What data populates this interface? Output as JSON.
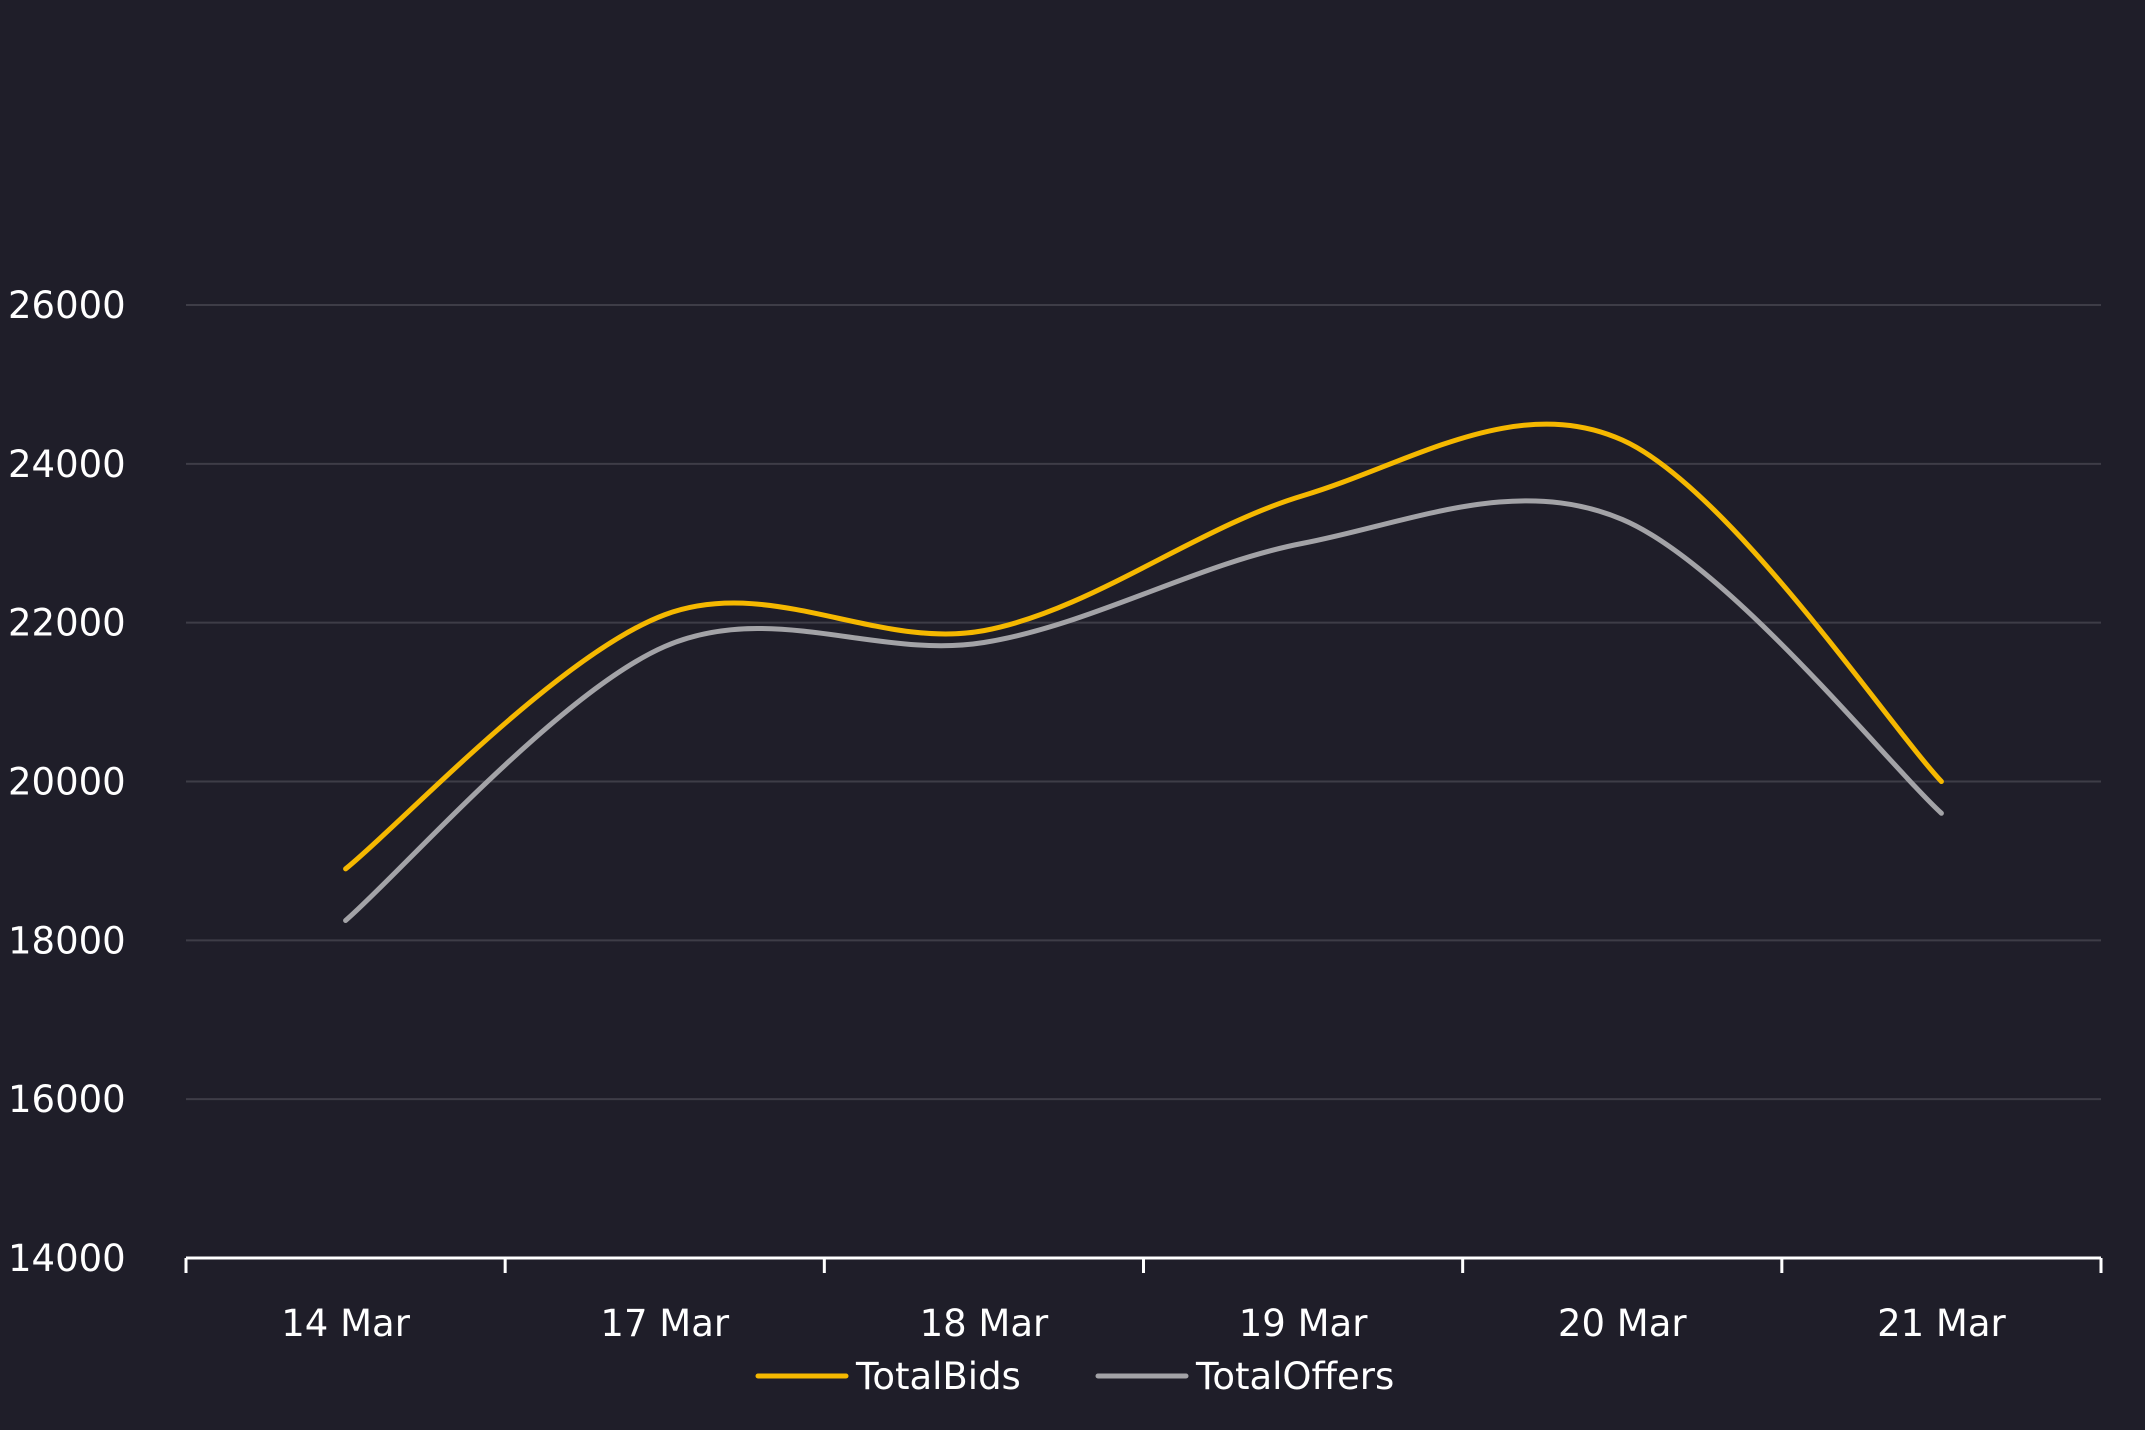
{
  "colors": {
    "background": "#1f1e29",
    "grid": "#3e3d47",
    "axis": "#ffffff",
    "text": "#ffffff"
  },
  "chart_data": {
    "type": "line",
    "categories": [
      "14 Mar",
      "17 Mar",
      "18 Mar",
      "19 Mar",
      "20 Mar",
      "21 Mar"
    ],
    "series": [
      {
        "name": "TotalBids",
        "color": "#f5b800",
        "values": [
          18900,
          22100,
          21900,
          23600,
          24300,
          20000
        ]
      },
      {
        "name": "TotalOffers",
        "color": "#a3a3a7",
        "values": [
          18250,
          21700,
          21750,
          23000,
          23300,
          19600
        ]
      }
    ],
    "ylim": [
      14000,
      26000
    ],
    "yticks": [
      14000,
      16000,
      18000,
      20000,
      22000,
      24000,
      26000
    ],
    "grid": true,
    "curve": "smooth",
    "legend_position": "bottom-center",
    "title": "",
    "xlabel": "",
    "ylabel": ""
  }
}
